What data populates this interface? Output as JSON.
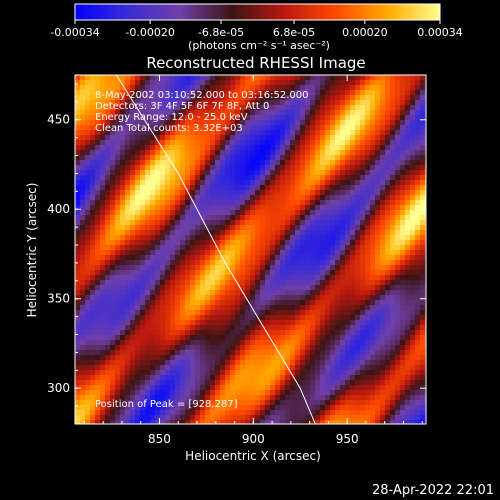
{
  "colorbar": {
    "ticks": [
      "-0.00034",
      "-0.00020",
      "-6.8e-05",
      "6.8e-05",
      "0.00020",
      "0.00034"
    ],
    "unit_label": "(photons cm⁻² s⁻¹ asec⁻²)",
    "range": [
      -0.00034,
      0.00034
    ],
    "colormap": [
      "#0000ff",
      "#3a2bd6",
      "#7040a8",
      "#3c1414",
      "#b81810",
      "#ff4a00",
      "#ffaa00",
      "#ffff90"
    ]
  },
  "chart_data": {
    "type": "heatmap",
    "title": "Reconstructed RHESSI Image",
    "xlabel": "Heliocentric X (arcsec)",
    "ylabel": "Heliocentric Y (arcsec)",
    "xlim": [
      805,
      992
    ],
    "ylim": [
      280,
      475
    ],
    "xticks": [
      "850",
      "900",
      "950"
    ],
    "yticks": [
      "300",
      "350",
      "400",
      "450"
    ],
    "info_lines": [
      "8-May-2002 03:10:52.000 to 03:16:52.000",
      "Detectors: 3F 4F 5F 6F 7F 8F, Att 0",
      "Energy Range: 12.0 - 25.0 keV",
      "Clean      Total counts: 3.32E+03"
    ],
    "peak_label": "Position of Peak = [928,287]",
    "peak_position": [
      928,
      287
    ],
    "limb_curve": [
      [
        827,
        475
      ],
      [
        860,
        420
      ],
      [
        885,
        370
      ],
      [
        905,
        335
      ],
      [
        925,
        300
      ],
      [
        933,
        280
      ]
    ]
  },
  "footer": {
    "timestamp": "28-Apr-2022 22:01"
  }
}
